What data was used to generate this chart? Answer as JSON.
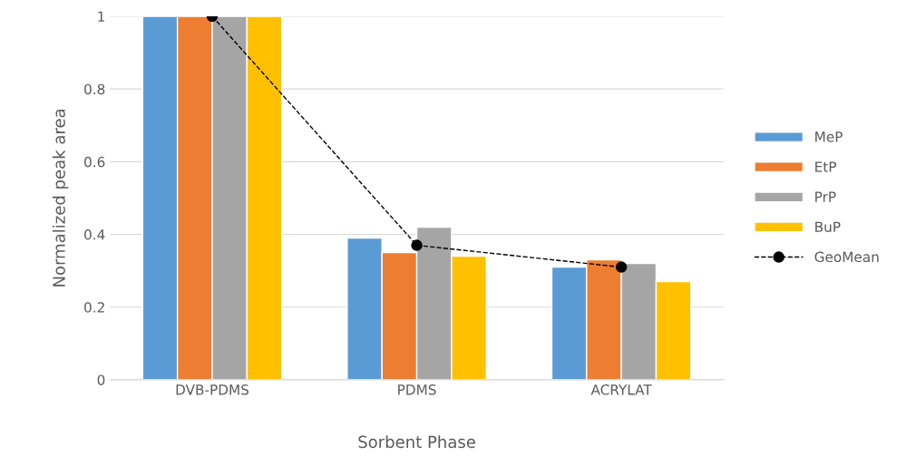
{
  "chart_data": {
    "type": "bar",
    "xlabel": "Sorbent Phase",
    "ylabel": "Normalized peak area",
    "categories": [
      "DVB-PDMS",
      "PDMS",
      "ACRYLAT"
    ],
    "series": [
      {
        "name": "MeP",
        "color": "#5b9bd5",
        "values": [
          1,
          0.39,
          0.31
        ]
      },
      {
        "name": "EtP",
        "color": "#ed7d31",
        "values": [
          1,
          0.35,
          0.33
        ]
      },
      {
        "name": "PrP",
        "color": "#a5a5a5",
        "values": [
          1,
          0.42,
          0.32
        ]
      },
      {
        "name": "BuP",
        "color": "#ffc000",
        "values": [
          1,
          0.34,
          0.27
        ]
      },
      {
        "name": "GeoMean",
        "type": "line",
        "color": "#000000",
        "marker": "circle",
        "line_style": "dashed",
        "values": [
          1,
          0.37,
          0.31
        ]
      }
    ],
    "ylim": [
      0,
      1
    ],
    "yticks": [
      0,
      0.2,
      0.4,
      0.6,
      0.8,
      1
    ],
    "grid": "y",
    "legend": "right"
  }
}
